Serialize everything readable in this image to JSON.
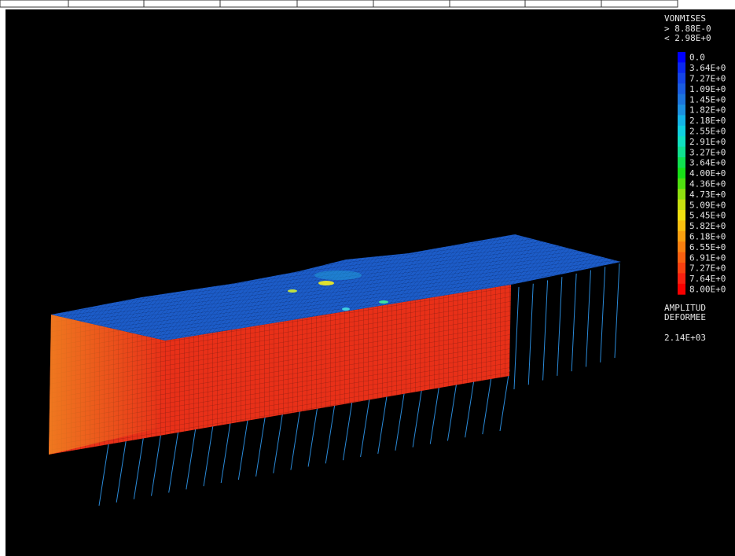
{
  "legend": {
    "title": "VONMISES",
    "max": "> 8.88E-0",
    "min": "< 2.98E+0",
    "items": [
      {
        "label": "0.0",
        "color": "#0000ff"
      },
      {
        "label": "3.64E+0",
        "color": "#0a28f0"
      },
      {
        "label": "7.27E+0",
        "color": "#1444e6"
      },
      {
        "label": "1.09E+0",
        "color": "#1a5ce0"
      },
      {
        "label": "1.45E+0",
        "color": "#1c74dc"
      },
      {
        "label": "1.82E+0",
        "color": "#1c90e0"
      },
      {
        "label": "2.18E+0",
        "color": "#14b4e8"
      },
      {
        "label": "2.55E+0",
        "color": "#10d0e0"
      },
      {
        "label": "2.91E+0",
        "color": "#10e0c0"
      },
      {
        "label": "3.27E+0",
        "color": "#10e090"
      },
      {
        "label": "3.64E+0",
        "color": "#10e050"
      },
      {
        "label": "4.00E+0",
        "color": "#18e018"
      },
      {
        "label": "4.36E+0",
        "color": "#50e010"
      },
      {
        "label": "4.73E+0",
        "color": "#90e010"
      },
      {
        "label": "5.09E+0",
        "color": "#c8e010"
      },
      {
        "label": "5.45E+0",
        "color": "#f0e010"
      },
      {
        "label": "5.82E+0",
        "color": "#f8c010"
      },
      {
        "label": "6.18E+0",
        "color": "#f8a010"
      },
      {
        "label": "6.55E+0",
        "color": "#f88010"
      },
      {
        "label": "6.91E+0",
        "color": "#f86010"
      },
      {
        "label": "7.27E+0",
        "color": "#f84010"
      },
      {
        "label": "7.64E+0",
        "color": "#f82010"
      },
      {
        "label": "8.00E+0",
        "color": "#f80000"
      }
    ]
  },
  "amplitude": {
    "line1": "AMPLITUD",
    "line2": "DEFORMEE",
    "value": "2.14E+03"
  }
}
